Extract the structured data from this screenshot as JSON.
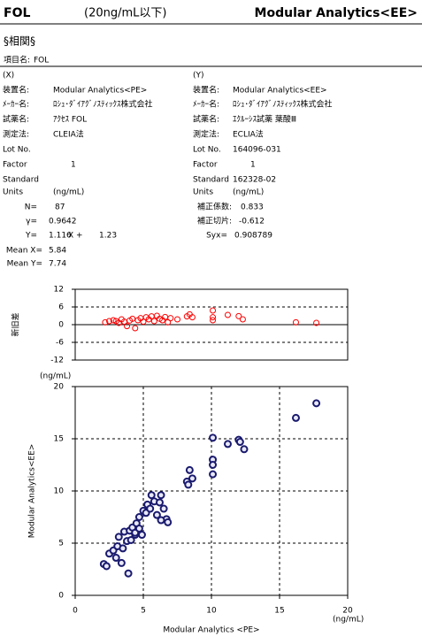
{
  "header": {
    "item": "FOL",
    "range": "(20ng/mL以下)",
    "device": "Modular Analytics<EE>"
  },
  "section": "§相関§",
  "item_row": {
    "label": "項目名:",
    "value": "FOL"
  },
  "columns": [
    {
      "heading": "(X)",
      "rows": [
        {
          "label": "装置名:",
          "value": "Modular Analytics<PE>"
        },
        {
          "label": "ﾒｰｶｰ名:",
          "value": "ﾛｼｭ･ﾀﾞｲｱｸﾞﾉｽﾃｨｯｸｽ株式会社"
        },
        {
          "label": "試薬名:",
          "value": "ｱｸｾｽ FOL"
        },
        {
          "label": "測定法:",
          "value": "CLEIA法"
        },
        {
          "label": "Lot No."
        },
        {
          "label": "Factor",
          "value": "1"
        },
        {
          "label": "Standard"
        },
        {
          "label": "Units",
          "value": "(ng/mL)"
        }
      ]
    },
    {
      "heading": "(Y)",
      "rows": [
        {
          "label": "装置名:",
          "value": "Modular Analytics<EE>"
        },
        {
          "label": "ﾒｰｶｰ名:",
          "value": "ﾛｼｭ･ﾀﾞｲｱｸﾞﾉｽﾃｨｯｸｽ株式会社"
        },
        {
          "label": "試薬名:",
          "value": "ｴｸﾙｰｼｽ試薬 葉酸Ⅲ"
        },
        {
          "label": "測定法:",
          "value": "ECLIA法"
        },
        {
          "label": "Lot No.",
          "value": "164096-031"
        },
        {
          "label": "Factor",
          "value": "1"
        },
        {
          "label": "Standard",
          "value": "162328-02"
        },
        {
          "label": "Units",
          "value": "(ng/mL)"
        }
      ]
    }
  ],
  "stats": {
    "n": {
      "label": "N=",
      "value": "87"
    },
    "r": {
      "label": "γ=",
      "value": "0.9642"
    },
    "eq": {
      "label": "Y=",
      "slope": "1.116",
      "op": "X +",
      "intercept": "1.23"
    },
    "mean_x": {
      "label": "Mean X=",
      "value": "5.84"
    },
    "mean_y": {
      "label": "Mean Y=",
      "value": "7.74"
    },
    "coef": {
      "label": "補正係数:",
      "value": "0.833"
    },
    "icpt": {
      "label": "補正切片:",
      "value": "-0.612"
    },
    "syx": {
      "label": "Syx=",
      "value": "0.908789"
    }
  },
  "chart_data": [
    {
      "type": "scatter",
      "y_label": "新旧差",
      "y_unit": "(ng/mL)",
      "color": "#ff0000",
      "xlim": [
        0,
        20
      ],
      "ylim": [
        -12,
        12
      ],
      "yticks": [
        -12,
        -6,
        0,
        6,
        12
      ],
      "x": [
        2.2,
        2.5,
        2.8,
        3.0,
        3.2,
        3.4,
        3.6,
        3.8,
        4.0,
        4.2,
        4.4,
        4.6,
        4.8,
        5.0,
        5.2,
        5.4,
        5.6,
        5.8,
        6.0,
        6.2,
        6.4,
        6.6,
        6.8,
        7.0,
        7.5,
        8.2,
        8.4,
        8.6,
        10.1,
        10.1,
        10.1,
        11.2,
        12.0,
        12.3,
        16.2,
        17.7
      ],
      "y": [
        0.8,
        1.2,
        1.5,
        1.2,
        0.6,
        1.8,
        1.0,
        -0.5,
        1.4,
        2.0,
        -1.2,
        1.5,
        2.2,
        1.0,
        2.5,
        1.8,
        2.8,
        1.2,
        3.0,
        2.0,
        1.5,
        2.6,
        0.8,
        2.2,
        1.8,
        2.8,
        3.5,
        2.5,
        4.8,
        2.5,
        1.5,
        3.3,
        2.9,
        1.8,
        0.8,
        0.6
      ]
    },
    {
      "type": "scatter",
      "x_label": "Modular Analytics <PE>",
      "y_label": "Modular Analytics<EE>",
      "x_unit": "(ng/mL)",
      "color": "#1a1a6e",
      "xlim": [
        0,
        20
      ],
      "ylim": [
        0,
        20
      ],
      "xticks": [
        0,
        5,
        10,
        15,
        20
      ],
      "yticks": [
        0,
        5,
        10,
        15,
        20
      ],
      "grid": true,
      "x": [
        2.1,
        2.3,
        2.5,
        2.8,
        3.1,
        3.2,
        3.4,
        3.6,
        3.8,
        3.9,
        4.0,
        4.2,
        4.4,
        4.5,
        4.7,
        4.9,
        5.0,
        5.2,
        5.3,
        5.5,
        5.6,
        5.8,
        6.0,
        6.2,
        6.3,
        6.5,
        6.7,
        6.8,
        6.3,
        8.2,
        8.3,
        8.4,
        8.6,
        10.1,
        10.1,
        10.1,
        10.1,
        11.2,
        12.0,
        12.1,
        12.4,
        16.2,
        17.7,
        3.0,
        3.5,
        4.1,
        4.4,
        4.7
      ],
      "y": [
        3.0,
        2.8,
        4.0,
        4.3,
        4.7,
        5.6,
        3.1,
        6.1,
        5.2,
        2.1,
        6.2,
        6.5,
        5.8,
        6.9,
        7.5,
        5.8,
        8.1,
        7.9,
        8.7,
        8.3,
        9.6,
        9.0,
        7.7,
        8.9,
        9.6,
        8.3,
        7.3,
        7.0,
        7.2,
        10.9,
        10.6,
        12.0,
        11.2,
        15.1,
        13.0,
        12.5,
        11.6,
        14.5,
        14.9,
        14.7,
        14.0,
        17.0,
        18.4,
        3.6,
        4.5,
        5.3,
        6.0,
        6.4
      ]
    }
  ]
}
